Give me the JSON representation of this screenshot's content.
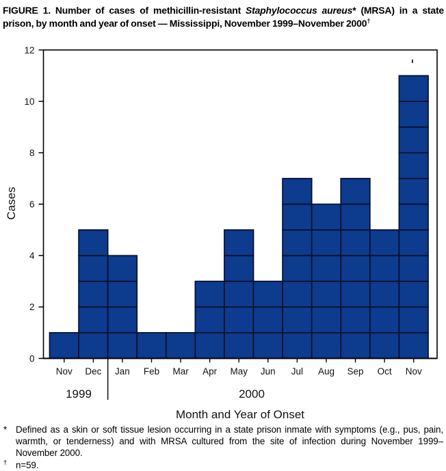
{
  "title": {
    "prefix": "FIGURE 1. Number of cases of methicillin-resistant ",
    "species": "Staphylococcus aureus",
    "after_species": "* (MRSA) in a state prison, by month and year of onset — Mississippi, November 1999–November ",
    "year": "2000",
    "dagger": "†"
  },
  "chart_data": {
    "type": "bar",
    "style": "epidemic curve: adjacent monthly bars divided into unit cells, one cell per case",
    "categories": [
      "Nov",
      "Dec",
      "Jan",
      "Feb",
      "Mar",
      "Apr",
      "May",
      "Jun",
      "Jul",
      "Aug",
      "Sep",
      "Oct",
      "Nov"
    ],
    "values": [
      1,
      5,
      4,
      1,
      1,
      3,
      5,
      3,
      7,
      6,
      7,
      5,
      11
    ],
    "total_n": 59,
    "ylabel": "Cases",
    "xlabel": "Month and Year of Onset",
    "ylim": [
      0,
      12
    ],
    "yticks": [
      0,
      2,
      4,
      6,
      8,
      10,
      12
    ],
    "year_groups": [
      {
        "label": "1999",
        "from": 0,
        "to": 1
      },
      {
        "label": "2000",
        "from": 2,
        "to": 12
      }
    ],
    "grid": false,
    "legend": "none",
    "bar_fill": "#0d3b8e",
    "bar_border": "#03102b",
    "axis_color": "#000000"
  },
  "footnotes": [
    {
      "marker": "*",
      "text": "Defined as a skin or soft tissue lesion occurring in a state prison inmate with symptoms (e.g., pus, pain, warmth, or tenderness) and with MRSA cultured from the site of infection during November 1999–November 2000."
    },
    {
      "marker": "†",
      "text": "n=59."
    }
  ]
}
